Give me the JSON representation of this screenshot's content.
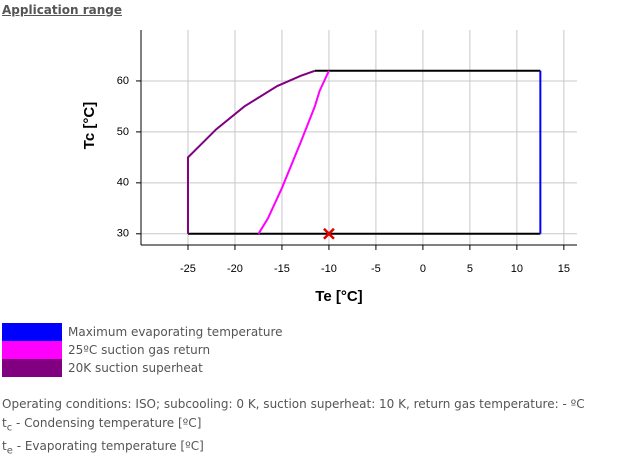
{
  "page_title": "Application range",
  "chart_data": {
    "type": "line",
    "xlabel": "Te [°C]",
    "ylabel": "Tc [°C]",
    "xlim": [
      -30,
      16.4
    ],
    "ylim": [
      27.8,
      70
    ],
    "xticks": [
      -25,
      -20,
      -15,
      -10,
      -5,
      0,
      5,
      10,
      15
    ],
    "yticks": [
      30,
      40,
      50,
      60
    ],
    "grid": true,
    "series": [
      {
        "color": "#000000",
        "x": [
          -25,
          12.5
        ],
        "values": [
          30,
          30
        ]
      },
      {
        "color": "#000000",
        "x": [
          -11.5,
          12.5
        ],
        "values": [
          62,
          62
        ]
      },
      {
        "name": "Maximum evaporating temperature",
        "color": "#0000ff",
        "x": [
          12.5,
          12.5
        ],
        "values": [
          30,
          62
        ]
      },
      {
        "name": "25ºC suction gas return",
        "color": "#ff00ff",
        "x": [
          -17.5,
          -16.5,
          -15,
          -13,
          -11.5,
          -11,
          -10
        ],
        "values": [
          30,
          33,
          39,
          48,
          55,
          58,
          62
        ]
      },
      {
        "name": "20K suction superheat",
        "color": "#800080",
        "x": [
          -25,
          -25,
          -22,
          -19,
          -15.5,
          -13,
          -11.5
        ],
        "values": [
          30,
          45,
          50.5,
          55,
          59,
          61,
          62
        ]
      }
    ],
    "marker": {
      "x": -10,
      "y": 30,
      "color": "#e00000"
    }
  },
  "notes": {
    "conditions": "Operating conditions: ISO; subcooling: 0 K, suction superheat: 10 K, return gas temperature: - ºC",
    "definitions": [
      {
        "symbol": "t",
        "subscript": "c",
        "text": " - Condensing temperature [ºC]"
      },
      {
        "symbol": "t",
        "subscript": "e",
        "text": " - Evaporating temperature [ºC]"
      }
    ]
  }
}
